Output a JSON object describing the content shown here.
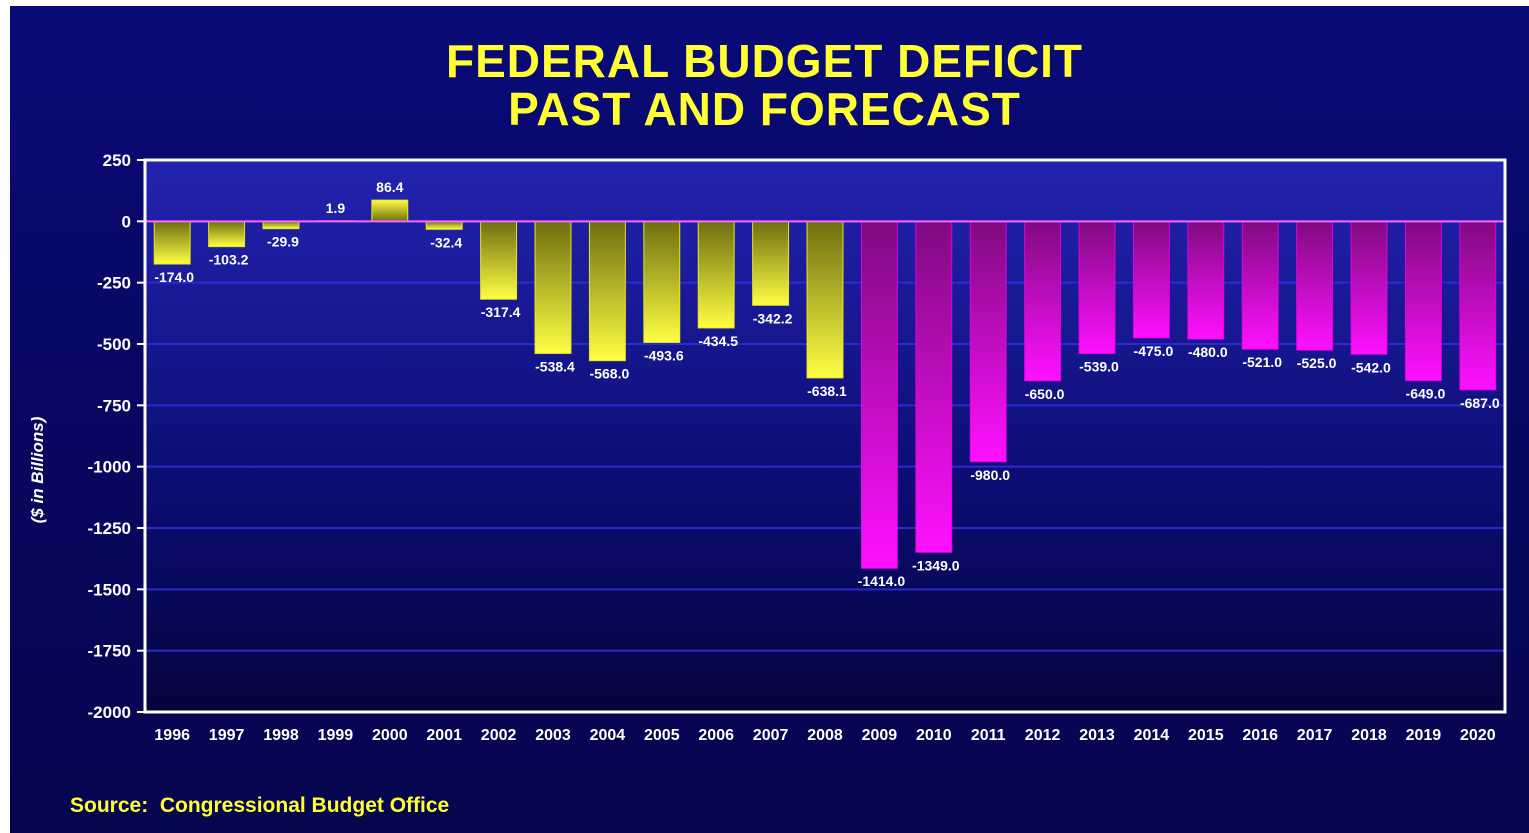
{
  "title_line1": "FEDERAL BUDGET DEFICIT",
  "title_line2": "PAST AND FORECAST",
  "source_text": "Source:  Congressional Budget Office",
  "chart_data": {
    "type": "bar",
    "ylabel": "($ in Billions)",
    "xlabel": "",
    "ylim": [
      -2000,
      250
    ],
    "yticks": [
      250,
      0,
      -250,
      -500,
      -750,
      -1000,
      -1250,
      -1500,
      -1750,
      -2000
    ],
    "categories": [
      "1996",
      "1997",
      "1998",
      "1999",
      "2000",
      "2001",
      "2002",
      "2003",
      "2004",
      "2005",
      "2006",
      "2007",
      "2008",
      "2009",
      "2010",
      "2011",
      "2012",
      "2013",
      "2014",
      "2015",
      "2016",
      "2017",
      "2018",
      "2019",
      "2020"
    ],
    "values": [
      -174.0,
      -103.2,
      -29.9,
      1.9,
      86.4,
      -32.4,
      -317.4,
      -538.4,
      -568.0,
      -493.6,
      -434.5,
      -342.2,
      -638.1,
      -1414.0,
      -1349.0,
      -980.0,
      -650.0,
      -539.0,
      -475.0,
      -480.0,
      -521.0,
      -525.0,
      -542.0,
      -649.0,
      -687.0
    ],
    "data_labels": [
      "-174.0",
      "-103.2",
      "-29.9",
      "1.9",
      "86.4",
      "-32.4",
      "-317.4",
      "-538.4",
      "-568.0",
      "-493.6",
      "-434.5",
      "-342.2",
      "-638.1",
      "-1414.0",
      "-1349.0",
      "-980.0",
      "-650.0",
      "-539.0",
      "-475.0",
      "-480.0",
      "-521.0",
      "-525.0",
      "-542.0",
      "-649.0",
      "-687.0"
    ],
    "series_kind": [
      "past",
      "past",
      "past",
      "past",
      "past",
      "past",
      "past",
      "past",
      "past",
      "past",
      "past",
      "past",
      "past",
      "forecast",
      "forecast",
      "forecast",
      "forecast",
      "forecast",
      "forecast",
      "forecast",
      "forecast",
      "forecast",
      "forecast",
      "forecast",
      "forecast"
    ],
    "grid": true,
    "legend": "none",
    "colors": {
      "past_bar": "#ffff33",
      "forecast_bar": "#ff00ff",
      "plot_background": "#1a1aa0",
      "gridline": "#2a2ad0",
      "axis_frame": "#ffffff",
      "zero_line": "#ff66ff"
    }
  }
}
